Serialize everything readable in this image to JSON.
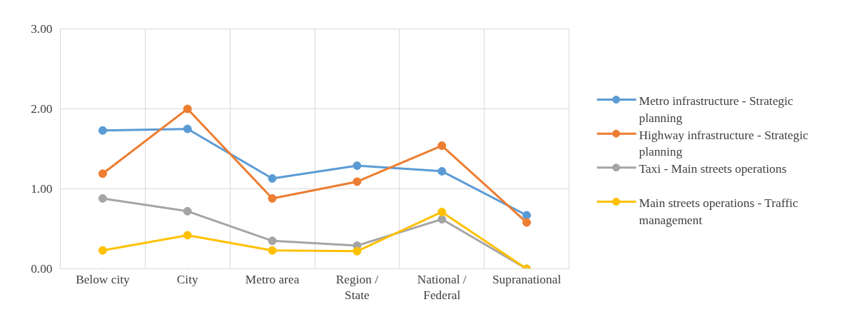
{
  "chart_data": {
    "type": "line",
    "categories": [
      "Below city",
      "City",
      "Metro area",
      "Region / State",
      "National / Federal",
      "Supranational"
    ],
    "series": [
      {
        "name": "Metro infrastructure - Strategic planning",
        "color": "#5b9bd5",
        "values": [
          1.73,
          1.75,
          1.13,
          1.29,
          1.22,
          0.67
        ]
      },
      {
        "name": "Highway infrastructure - Strategic planning",
        "color": "#ed7d31",
        "values": [
          1.19,
          2.0,
          0.88,
          1.09,
          1.54,
          0.58
        ]
      },
      {
        "name": "Taxi - Main streets operations",
        "color": "#a5a5a5",
        "values": [
          0.88,
          0.72,
          0.35,
          0.29,
          0.62,
          0.0
        ]
      },
      {
        "name": "Main streets operations - Traffic management",
        "color": "#ffc000",
        "values": [
          0.23,
          0.42,
          0.23,
          0.22,
          0.71,
          0.0
        ]
      }
    ],
    "ylim": [
      0,
      3
    ],
    "yticks": [
      {
        "value": 0,
        "label": "0.00"
      },
      {
        "value": 1,
        "label": "1.00"
      },
      {
        "value": 2,
        "label": "2.00"
      },
      {
        "value": 3,
        "label": "3.00"
      }
    ],
    "grid": true,
    "legend": "right",
    "marker": "circle",
    "line_style": "solid"
  }
}
